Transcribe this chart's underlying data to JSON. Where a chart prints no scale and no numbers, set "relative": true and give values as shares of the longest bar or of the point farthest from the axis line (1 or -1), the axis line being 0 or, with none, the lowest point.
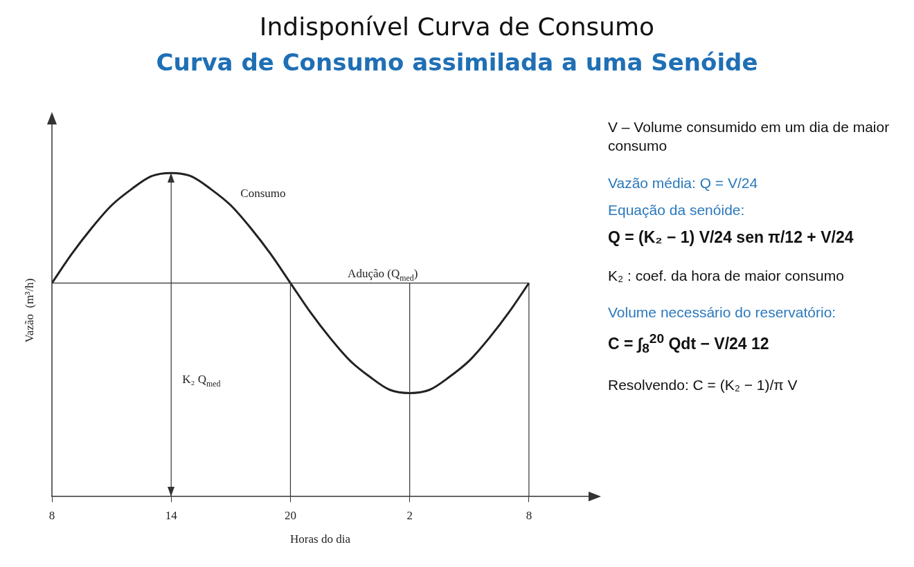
{
  "chart_data": {
    "type": "line",
    "title": "Indisponível Curva de Consumo",
    "subtitle": "Curva de Consumo assimilada a uma Senóide",
    "xlabel": "Horas do dia",
    "ylabel": "Vazão  (m³/h)",
    "relative": true,
    "marker": "none",
    "legend": false,
    "grid": false,
    "categories": [
      "8",
      null,
      null,
      null,
      null,
      null,
      "14",
      null,
      null,
      null,
      null,
      null,
      "20",
      null,
      null,
      null,
      null,
      null,
      "2",
      null,
      null,
      null,
      null,
      null,
      "8"
    ],
    "series": [
      {
        "name": "Consumo",
        "color": "#222222",
        "values": [
          0.66,
          0.75,
          0.83,
          0.9,
          0.95,
          0.99,
          1.0,
          0.99,
          0.95,
          0.9,
          0.83,
          0.75,
          0.66,
          0.57,
          0.49,
          0.42,
          0.37,
          0.33,
          0.32,
          0.33,
          0.37,
          0.42,
          0.49,
          0.57,
          0.66
        ]
      }
    ],
    "ref_lines": [
      {
        "axis": "y",
        "value": 0.66,
        "label": "Adução (Q$_{med}$)"
      },
      {
        "axis": "x",
        "value": "14",
        "label": "K₂ Q$_{med}$"
      },
      {
        "axis": "x",
        "value": "20"
      },
      {
        "axis": "x",
        "value": "2"
      },
      {
        "axis": "x",
        "value": "8"
      }
    ],
    "annotations": [
      "V – Volume consumido em um dia de maior consumo",
      "Vazão média:   Q = V/24",
      "Equação da senóide:",
      "Q = (K₂ − 1) V/24 sen π/12 + V/24",
      "K₂ : coef. da hora de maior consumo",
      "Volume necessário do reservatório:",
      "C = ∫$_{8}$$^{20}$ Qdt − V/24 12",
      "Resolvendo:   C = (K₂ − 1)/π V"
    ]
  }
}
